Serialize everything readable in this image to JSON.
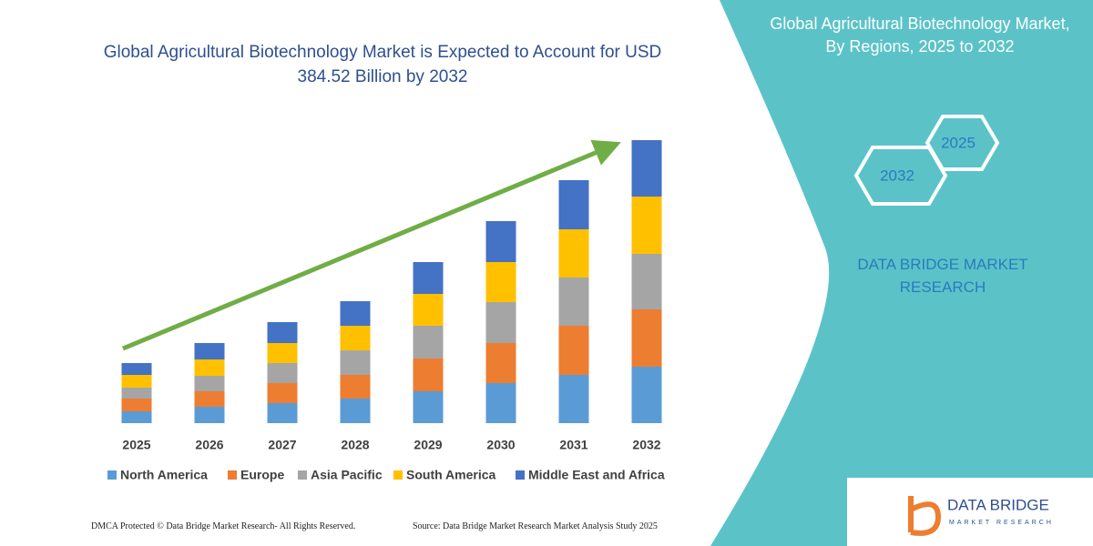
{
  "chart_data": {
    "type": "stacked_bar",
    "title": "Global Agricultural Biotechnology Market is Expected to Account for USD 384.52 Billion by 2032",
    "categories": [
      "2025",
      "2026",
      "2027",
      "2028",
      "2029",
      "2030",
      "2031",
      "2032"
    ],
    "series": [
      {
        "name": "North America",
        "color": "#5b9bd5",
        "values": [
          13,
          18,
          22,
          27,
          35,
          44,
          53,
          62
        ]
      },
      {
        "name": "Europe",
        "color": "#ed7d31",
        "values": [
          14,
          17,
          22,
          26,
          36,
          44,
          54,
          63
        ]
      },
      {
        "name": "Asia Pacific",
        "color": "#a5a5a5",
        "values": [
          12,
          17,
          22,
          27,
          36,
          45,
          53,
          61
        ]
      },
      {
        "name": "South America",
        "color": "#ffc000",
        "values": [
          14,
          18,
          22,
          27,
          35,
          44,
          53,
          63
        ]
      },
      {
        "name": "Middle East and Africa",
        "color": "#4472c4",
        "values": [
          13,
          18,
          23,
          27,
          35,
          45,
          54,
          62
        ]
      }
    ]
  },
  "panel": {
    "title": "Global Agricultural Biotechnology Market, By Regions, 2025 to 2032",
    "hex_start": "2025",
    "hex_end": "2032",
    "brand": "DATA BRIDGE MARKET RESEARCH"
  },
  "logo": {
    "name": "DATA BRIDGE",
    "tagline": "MARKET RESEARCH"
  },
  "footer": {
    "left": "DMCA Protected © Data Bridge Market Research-  All Rights Reserved.",
    "right": "Source: Data Bridge Market Research  Market Analysis Study 2025"
  }
}
